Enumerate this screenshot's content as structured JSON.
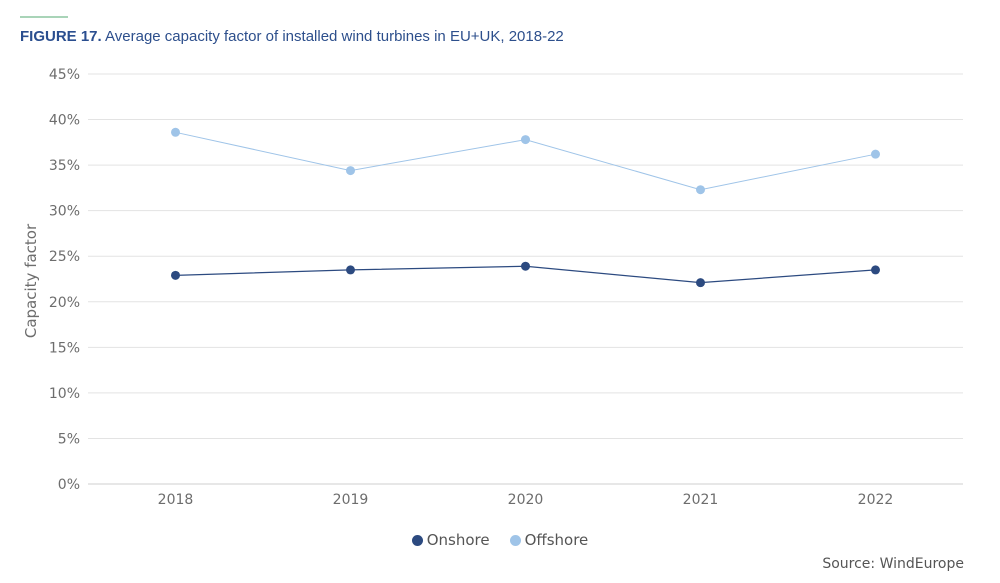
{
  "figure": {
    "label": "FIGURE 17.",
    "title": "Average capacity factor of installed wind turbines in EU+UK, 2018-22"
  },
  "source": "Source: WindEurope",
  "colors": {
    "onshore": "#2c4a80",
    "offshore": "#9fc4e8",
    "grid": "#e3e3e3",
    "title": "#2d4f8c"
  },
  "chart_data": {
    "type": "line",
    "title": "Average capacity factor of installed wind turbines in EU+UK, 2018-22",
    "xlabel": "",
    "ylabel": "Capacity factor",
    "x": [
      "2018",
      "2019",
      "2020",
      "2021",
      "2022"
    ],
    "yticks": [
      "0%",
      "5%",
      "10%",
      "15%",
      "20%",
      "25%",
      "30%",
      "35%",
      "40%",
      "45%"
    ],
    "ylim": [
      0,
      45
    ],
    "grid": true,
    "legend": "bottom-center",
    "series": [
      {
        "name": "Onshore",
        "values": [
          22.9,
          23.5,
          23.9,
          22.1,
          23.5
        ]
      },
      {
        "name": "Offshore",
        "values": [
          38.6,
          34.4,
          37.8,
          32.3,
          36.2
        ]
      }
    ]
  }
}
